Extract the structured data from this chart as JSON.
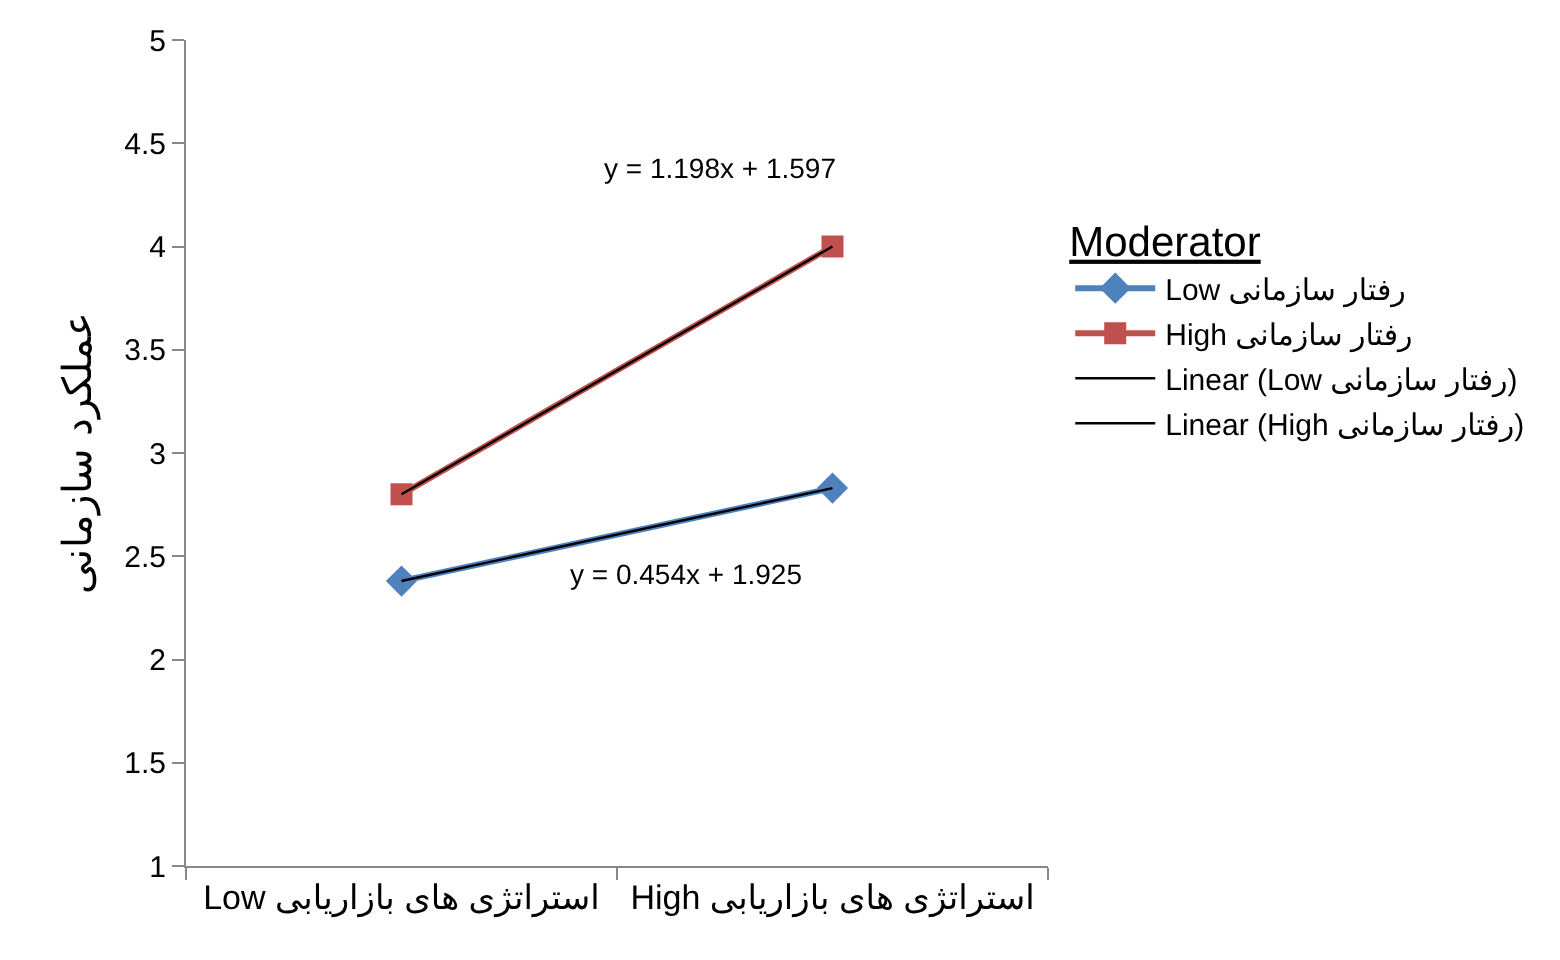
{
  "chart_data": {
    "type": "line",
    "ylabel": "عملکرد سازمانی",
    "legend_title": "Moderator",
    "categories": [
      "Low استراتژی های بازاریابی",
      "High استراتژی های بازاریابی"
    ],
    "series": [
      {
        "name": "Low رفتار سازمانی",
        "color": "#4f81bd",
        "values": [
          2.38,
          2.83
        ],
        "marker": "diamond"
      },
      {
        "name": "High رفتار سازمانی",
        "color": "#c0504d",
        "values": [
          2.8,
          4.0
        ],
        "marker": "square"
      },
      {
        "name": "Linear (Low رفتار سازمانی)",
        "color": "#000000",
        "values": [
          2.38,
          2.83
        ],
        "marker": "none"
      },
      {
        "name": "Linear (High رفتار سازمانی)",
        "color": "#000000",
        "values": [
          2.8,
          4.0
        ],
        "marker": "none"
      }
    ],
    "annotations": [
      "y = 1.198x + 1.597",
      "y = 0.454x + 1.925"
    ],
    "ylim": [
      1,
      5
    ],
    "yticks": [
      1,
      1.5,
      2,
      2.5,
      3,
      3.5,
      4,
      4.5,
      5
    ],
    "grid": false,
    "legend": "right"
  }
}
